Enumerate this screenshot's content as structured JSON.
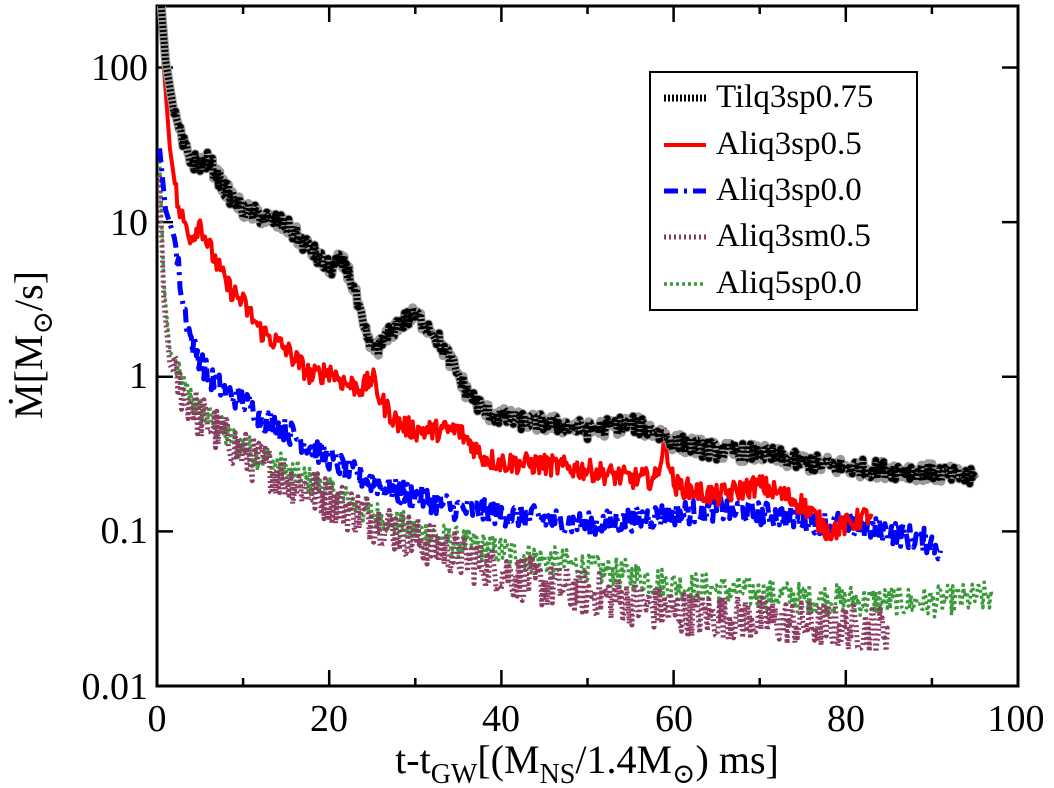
{
  "chart_data": {
    "type": "line",
    "title": "",
    "xlabel": {
      "t": "t-t",
      "t_sub": "GW",
      "open": "[(M",
      "ns_sub": "NS",
      "mid": "/1.4M",
      "sun_sub": "⊙",
      "close": ") ms]"
    },
    "ylabel": {
      "m": "Ṁ[M",
      "sun_sub": "⊙",
      "close": "/s]"
    },
    "xlim": [
      0,
      100
    ],
    "ylim": [
      0.01,
      250
    ],
    "yscale": "log",
    "xticks": [
      "0",
      "20",
      "40",
      "60",
      "80",
      "100"
    ],
    "yticks": [
      "0.01",
      "0.1",
      "1",
      "10",
      "100"
    ],
    "legend_position": "top-right",
    "series": [
      {
        "name": "Tilq3sp0.75",
        "color": "#000000",
        "style": "dotted",
        "noise": 0.06,
        "x": [
          0.5,
          1,
          2,
          3,
          4,
          5,
          6,
          7,
          8,
          10,
          12,
          15,
          18,
          20,
          21,
          22,
          23,
          24,
          25,
          26,
          28,
          30,
          32,
          34,
          36,
          38,
          40,
          42,
          45,
          48,
          50,
          55,
          58,
          60,
          65,
          70,
          75,
          80,
          85,
          90,
          95
        ],
        "y": [
          250,
          110,
          50,
          32,
          25,
          24,
          25,
          20,
          16,
          12,
          11,
          9.5,
          6.5,
          5.0,
          5.5,
          5.2,
          3.5,
          2.0,
          1.5,
          1.6,
          2.2,
          2.5,
          2.0,
          1.3,
          0.8,
          0.6,
          0.55,
          0.52,
          0.5,
          0.48,
          0.45,
          0.5,
          0.44,
          0.38,
          0.33,
          0.32,
          0.28,
          0.26,
          0.25,
          0.24,
          0.22
        ]
      },
      {
        "name": "Aliq3sp0.5",
        "color": "#ff0000",
        "style": "solid",
        "noise": 0.07,
        "x": [
          0.3,
          0.8,
          1.5,
          2.5,
          4,
          5,
          6,
          8,
          10,
          12,
          15,
          18,
          20,
          22,
          24,
          25,
          26,
          28,
          30,
          35,
          38,
          40,
          45,
          50,
          55,
          58,
          59,
          60,
          63,
          65,
          70,
          75,
          78,
          80,
          83
        ],
        "y": [
          250,
          100,
          30,
          12,
          8,
          10,
          7,
          4.0,
          3.0,
          2.0,
          1.5,
          1.0,
          1.1,
          0.9,
          0.85,
          1.0,
          0.7,
          0.5,
          0.45,
          0.45,
          0.3,
          0.28,
          0.27,
          0.25,
          0.22,
          0.22,
          0.4,
          0.2,
          0.18,
          0.17,
          0.2,
          0.15,
          0.1,
          0.11,
          0.13
        ]
      },
      {
        "name": "Aliq3sp0.0",
        "color": "#0000ff",
        "style": "dashdot",
        "noise": 0.08,
        "x": [
          0.3,
          1,
          2,
          2.5,
          3,
          4,
          5,
          6,
          8,
          10,
          12,
          15,
          18,
          20,
          22,
          25,
          28,
          30,
          35,
          40,
          45,
          50,
          55,
          60,
          65,
          70,
          75,
          80,
          85,
          90,
          91
        ],
        "y": [
          30,
          12,
          8,
          5,
          3.0,
          1.7,
          1.3,
          1.0,
          0.8,
          0.7,
          0.55,
          0.45,
          0.35,
          0.3,
          0.25,
          0.21,
          0.18,
          0.17,
          0.14,
          0.13,
          0.12,
          0.11,
          0.12,
          0.13,
          0.14,
          0.13,
          0.12,
          0.11,
          0.1,
          0.085,
          0.075
        ]
      },
      {
        "name": "Aliq3sm0.5",
        "color": "#8b3a62",
        "style": "crosses",
        "noise": 0.15,
        "x": [
          0.3,
          0.8,
          1.5,
          3,
          5,
          8,
          10,
          15,
          20,
          25,
          30,
          35,
          40,
          45,
          50,
          55,
          60,
          65,
          70,
          75,
          80,
          85
        ],
        "y": [
          20,
          3,
          1.2,
          0.8,
          0.55,
          0.4,
          0.32,
          0.22,
          0.16,
          0.12,
          0.09,
          0.07,
          0.055,
          0.045,
          0.04,
          0.035,
          0.03,
          0.028,
          0.027,
          0.025,
          0.024,
          0.023
        ]
      },
      {
        "name": "Aliq5sp0.0",
        "color": "#3a9a3a",
        "style": "arcs",
        "noise": 0.1,
        "x": [
          0.3,
          0.8,
          1.5,
          3,
          5,
          8,
          10,
          15,
          20,
          25,
          30,
          35,
          40,
          45,
          50,
          55,
          60,
          65,
          70,
          75,
          80,
          85,
          90,
          95,
          97
        ],
        "y": [
          25,
          4,
          1.5,
          0.85,
          0.6,
          0.42,
          0.35,
          0.25,
          0.18,
          0.13,
          0.1,
          0.085,
          0.075,
          0.065,
          0.058,
          0.052,
          0.045,
          0.042,
          0.04,
          0.037,
          0.036,
          0.035,
          0.035,
          0.037,
          0.038
        ]
      }
    ]
  }
}
